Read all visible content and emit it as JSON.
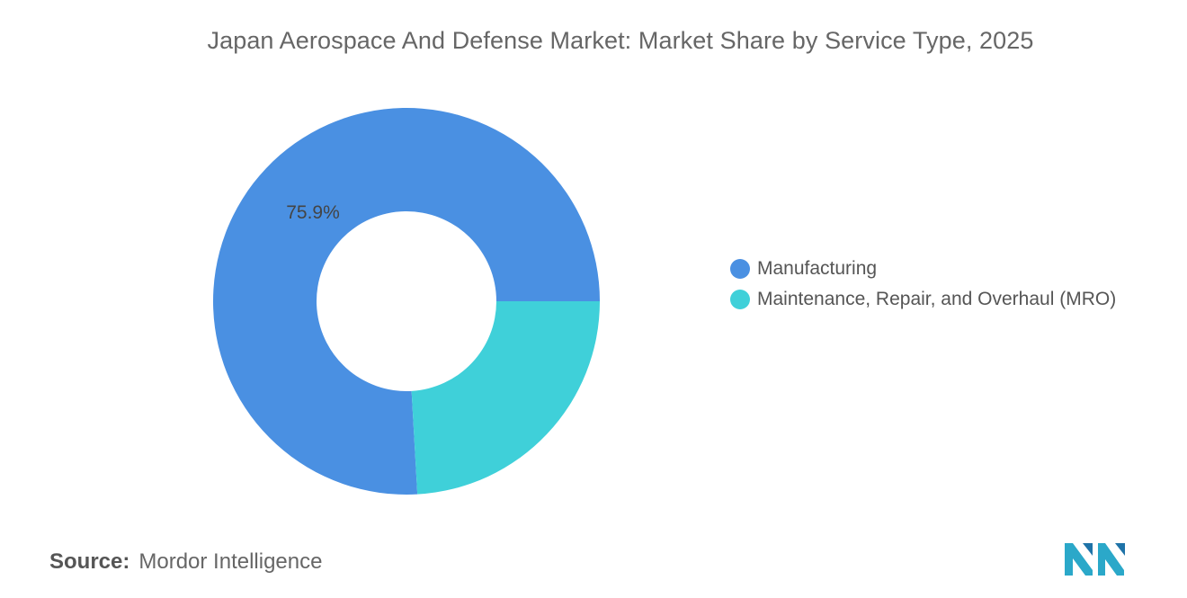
{
  "chart_data": {
    "type": "pie",
    "title": "Japan Aerospace And Defense Market: Market Share by Service Type, 2025",
    "donut": true,
    "categories": [
      "Manufacturing",
      "Maintenance, Repair, and Overhaul (MRO)"
    ],
    "values": [
      75.9,
      24.1
    ],
    "data_labels": [
      "75.9%",
      ""
    ],
    "colors": [
      "#4a90e2",
      "#3fd0d9"
    ],
    "legend_position": "right"
  },
  "legend": {
    "items": [
      {
        "label": "Manufacturing",
        "color": "#4a90e2"
      },
      {
        "label": "Maintenance, Repair, and Overhaul (MRO)",
        "color": "#3fd0d9"
      }
    ]
  },
  "source": {
    "key": "Source:",
    "value": "Mordor Intelligence"
  },
  "logo": {
    "icon": "mordor-intelligence-logo-icon"
  }
}
